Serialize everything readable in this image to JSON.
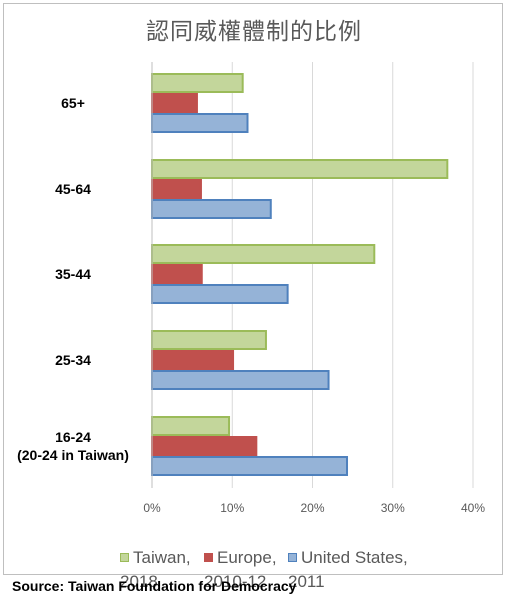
{
  "chart_data": {
    "type": "bar",
    "orientation": "horizontal",
    "title": "認同威權體制的比例",
    "categories": [
      "65+",
      "45-64",
      "35-44",
      "25-34",
      "16-24\n(20-24 in Taiwan)"
    ],
    "series": [
      {
        "name": "Taiwan,\n2018",
        "color": "#c3d69b",
        "stroke": "#9bbb59",
        "values": [
          11.3,
          36.8,
          27.7,
          14.2,
          9.6
        ]
      },
      {
        "name": "Europe,\n2010-12",
        "color": "#c0504d",
        "stroke": "#c0504d",
        "values": [
          5.6,
          6.1,
          6.2,
          10.1,
          13.0
        ]
      },
      {
        "name": "United States,\n2011",
        "color": "#95b3d7",
        "stroke": "#4f81bd",
        "values": [
          11.9,
          14.8,
          16.9,
          22.0,
          24.3
        ]
      }
    ],
    "xlim": [
      0,
      40
    ],
    "xticks": [
      0,
      10,
      20,
      30,
      40
    ],
    "xtick_format": "percent",
    "grid": true,
    "legend_position": "bottom"
  },
  "source": "Source: Taiwan Foundation for Democracy"
}
